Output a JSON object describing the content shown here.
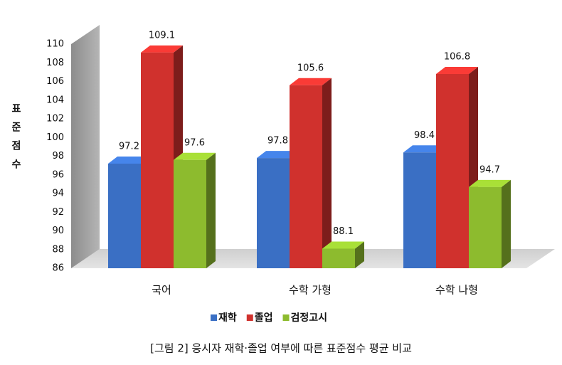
{
  "chart_data": {
    "type": "bar3d",
    "y_label": "표준점수",
    "caption": "[그림 2] 응시자 재학·졸업 여부에 따른 표준점수 평균 비교",
    "categories": [
      "국어",
      "수학 가형",
      "수학 나형"
    ],
    "series": [
      {
        "name": "재학",
        "color": "#3a6fc4",
        "values": [
          97.2,
          97.8,
          98.4
        ]
      },
      {
        "name": "졸업",
        "color": "#d0312d",
        "values": [
          109.1,
          105.6,
          106.8
        ]
      },
      {
        "name": "검정고시",
        "color": "#8dbb2e",
        "values": [
          97.6,
          88.1,
          94.7
        ]
      }
    ],
    "ylim": [
      86,
      110
    ],
    "yticks": [
      86,
      88,
      90,
      92,
      94,
      96,
      98,
      100,
      102,
      104,
      106,
      108,
      110
    ]
  }
}
